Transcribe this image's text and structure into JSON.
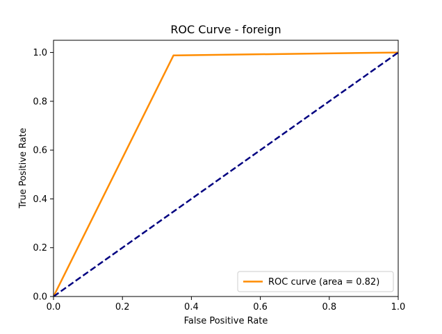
{
  "chart_data": {
    "type": "line",
    "title": "ROC Curve - foreign",
    "xlabel": "False Positive Rate",
    "ylabel": "True Positive Rate",
    "xlim": [
      0.0,
      1.0
    ],
    "ylim": [
      0.0,
      1.05
    ],
    "x_ticks": [
      0.0,
      0.2,
      0.4,
      0.6,
      0.8,
      1.0
    ],
    "y_ticks": [
      0.0,
      0.2,
      0.4,
      0.6,
      0.8,
      1.0
    ],
    "x_tick_labels": [
      "0.0",
      "0.2",
      "0.4",
      "0.6",
      "0.8",
      "1.0"
    ],
    "y_tick_labels": [
      "0.0",
      "0.2",
      "0.4",
      "0.6",
      "0.8",
      "1.0"
    ],
    "grid": false,
    "legend_position": "lower right",
    "series": [
      {
        "name": "ROC curve (area = 0.82)",
        "color": "#ff8c00",
        "style": "solid",
        "x": [
          0.0,
          0.348,
          1.0
        ],
        "y": [
          0.0,
          0.988,
          1.0
        ]
      },
      {
        "color": "#000080",
        "style": "dashed",
        "x": [
          0.0,
          1.0
        ],
        "y": [
          0.0,
          1.0
        ]
      }
    ]
  }
}
